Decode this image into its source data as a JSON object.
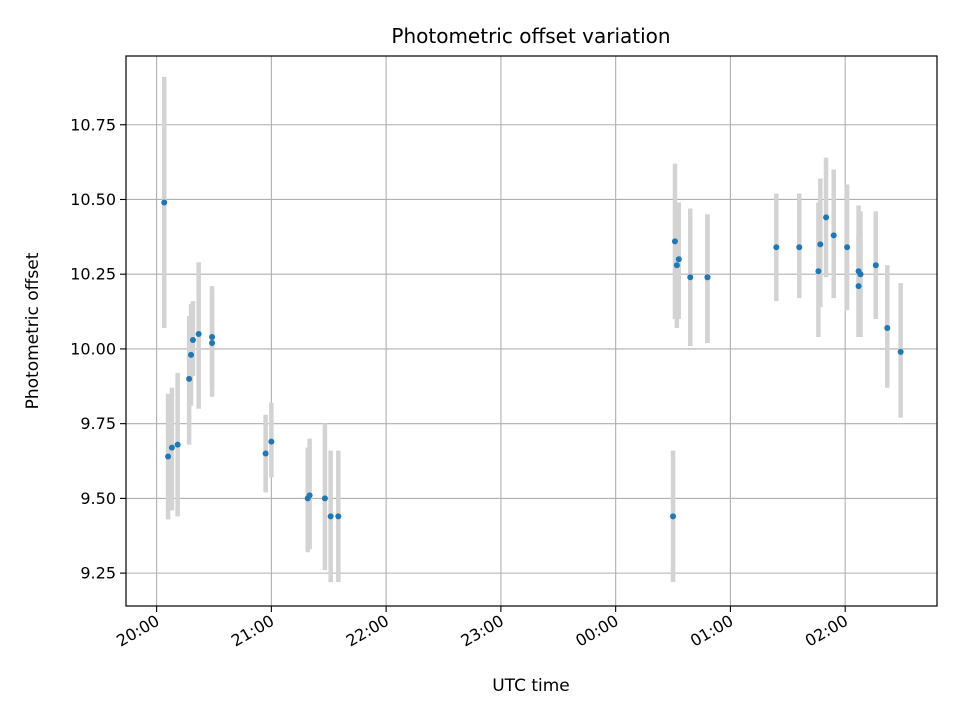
{
  "chart_data": {
    "type": "scatter",
    "title": "Photometric offset variation",
    "xlabel": "UTC time",
    "ylabel": "Photometric offset",
    "x_axis": {
      "kind": "time",
      "range": [
        "19:44",
        "02:48"
      ],
      "ticks": [
        "20:00",
        "21:00",
        "22:00",
        "23:00",
        "00:00",
        "01:00",
        "02:00"
      ]
    },
    "y_axis": {
      "range": [
        9.14,
        10.98
      ],
      "ticks": [
        "9.25",
        "9.50",
        "9.75",
        "10.00",
        "10.25",
        "10.50",
        "10.75"
      ]
    },
    "grid": true,
    "colors": {
      "point": "#1f77b4",
      "errorbar": "#d3d3d3",
      "grid": "#b0b0b0"
    },
    "points": [
      {
        "t": "20:04",
        "y": 10.49,
        "lo": 10.07,
        "hi": 10.91
      },
      {
        "t": "20:06",
        "y": 9.64,
        "lo": 9.43,
        "hi": 9.85
      },
      {
        "t": "20:08",
        "y": 9.67,
        "lo": 9.46,
        "hi": 9.87
      },
      {
        "t": "20:11",
        "y": 9.68,
        "lo": 9.44,
        "hi": 9.92
      },
      {
        "t": "20:17",
        "y": 9.9,
        "lo": 9.68,
        "hi": 10.11
      },
      {
        "t": "20:18",
        "y": 9.98,
        "lo": 9.81,
        "hi": 10.15
      },
      {
        "t": "20:19",
        "y": 10.03,
        "lo": 9.91,
        "hi": 10.16
      },
      {
        "t": "20:22",
        "y": 10.05,
        "lo": 9.8,
        "hi": 10.29
      },
      {
        "t": "20:29",
        "y": 10.02,
        "lo": 9.84,
        "hi": 10.21
      },
      {
        "t": "20:29",
        "y": 10.04,
        "lo": 9.87,
        "hi": 10.2
      },
      {
        "t": "20:57",
        "y": 9.65,
        "lo": 9.52,
        "hi": 9.78
      },
      {
        "t": "21:00",
        "y": 9.69,
        "lo": 9.57,
        "hi": 9.82
      },
      {
        "t": "21:19",
        "y": 9.5,
        "lo": 9.32,
        "hi": 9.67
      },
      {
        "t": "21:20",
        "y": 9.51,
        "lo": 9.33,
        "hi": 9.7
      },
      {
        "t": "21:28",
        "y": 9.5,
        "lo": 9.26,
        "hi": 9.75
      },
      {
        "t": "21:31",
        "y": 9.44,
        "lo": 9.22,
        "hi": 9.66
      },
      {
        "t": "21:35",
        "y": 9.44,
        "lo": 9.22,
        "hi": 9.66
      },
      {
        "t": "00:30",
        "y": 9.44,
        "lo": 9.22,
        "hi": 9.66
      },
      {
        "t": "00:31",
        "y": 10.36,
        "lo": 10.1,
        "hi": 10.62
      },
      {
        "t": "00:32",
        "y": 10.28,
        "lo": 10.07,
        "hi": 10.49
      },
      {
        "t": "00:33",
        "y": 10.3,
        "lo": 10.1,
        "hi": 10.49
      },
      {
        "t": "00:39",
        "y": 10.24,
        "lo": 10.01,
        "hi": 10.47
      },
      {
        "t": "00:48",
        "y": 10.24,
        "lo": 10.02,
        "hi": 10.45
      },
      {
        "t": "00:48",
        "y": 10.24,
        "lo": 10.02,
        "hi": 10.45
      },
      {
        "t": "01:24",
        "y": 10.34,
        "lo": 10.16,
        "hi": 10.52
      },
      {
        "t": "01:36",
        "y": 10.34,
        "lo": 10.17,
        "hi": 10.52
      },
      {
        "t": "01:46",
        "y": 10.26,
        "lo": 10.04,
        "hi": 10.49
      },
      {
        "t": "01:47",
        "y": 10.35,
        "lo": 10.14,
        "hi": 10.57
      },
      {
        "t": "01:50",
        "y": 10.44,
        "lo": 10.24,
        "hi": 10.64
      },
      {
        "t": "01:54",
        "y": 10.38,
        "lo": 10.17,
        "hi": 10.6
      },
      {
        "t": "02:01",
        "y": 10.34,
        "lo": 10.13,
        "hi": 10.55
      },
      {
        "t": "02:07",
        "y": 10.21,
        "lo": 10.04,
        "hi": 10.38
      },
      {
        "t": "02:07",
        "y": 10.26,
        "lo": 10.04,
        "hi": 10.48
      },
      {
        "t": "02:08",
        "y": 10.25,
        "lo": 10.04,
        "hi": 10.46
      },
      {
        "t": "02:16",
        "y": 10.28,
        "lo": 10.1,
        "hi": 10.46
      },
      {
        "t": "02:22",
        "y": 10.07,
        "lo": 9.87,
        "hi": 10.28
      },
      {
        "t": "02:29",
        "y": 9.99,
        "lo": 9.77,
        "hi": 10.22
      }
    ]
  }
}
